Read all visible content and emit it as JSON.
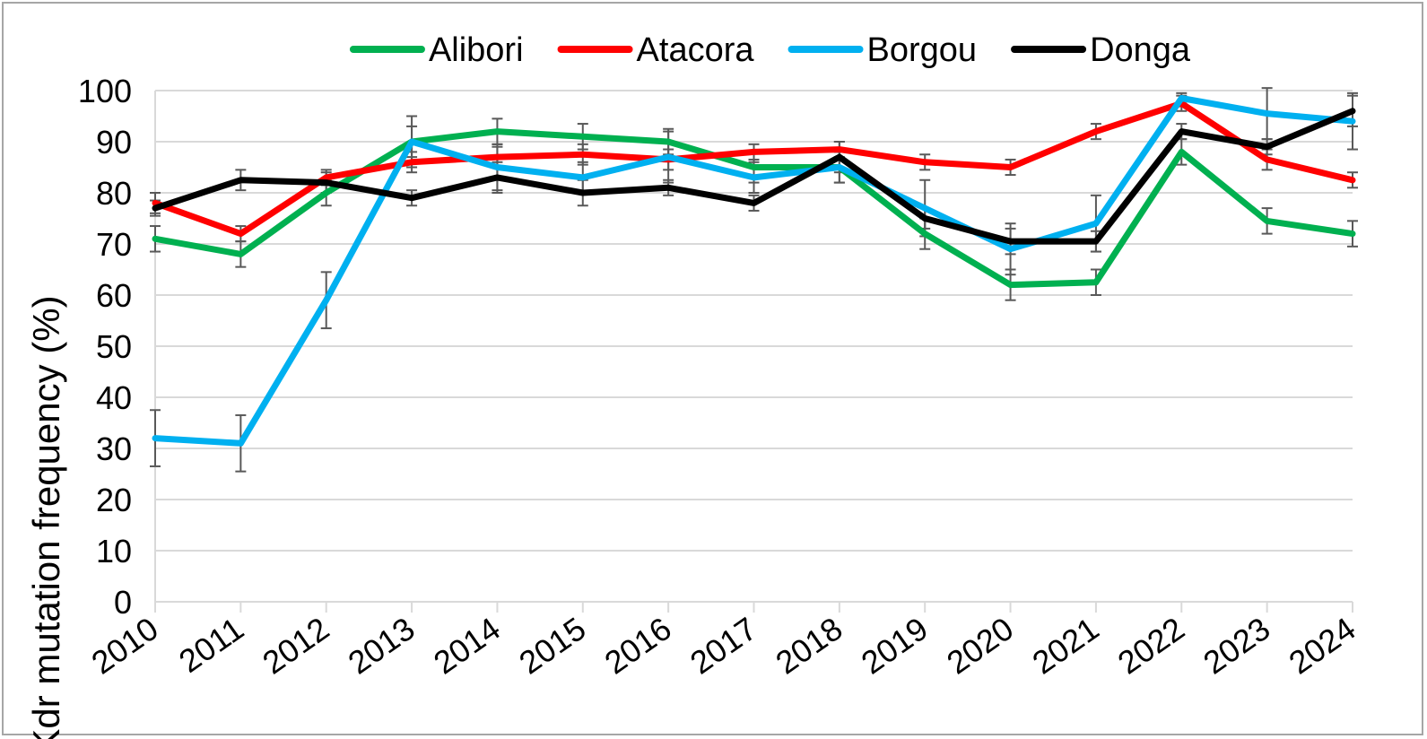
{
  "chart_data": {
    "type": "line",
    "title": "",
    "xlabel": "",
    "ylabel": "Kdr mutation frequency (%)",
    "ylim": [
      0,
      100
    ],
    "yticks": [
      "0",
      "10",
      "20",
      "30",
      "40",
      "50",
      "60",
      "70",
      "80",
      "90",
      "100"
    ],
    "grid": true,
    "legend_position": "top",
    "x": [
      "2010",
      "2011",
      "2012",
      "2013",
      "2014",
      "2015",
      "2016",
      "2017",
      "2018",
      "2019",
      "2020",
      "2021",
      "2022",
      "2023",
      "2024"
    ],
    "series": [
      {
        "name": "Alibori",
        "color": "#00b050",
        "values": [
          71,
          68,
          80,
          90,
          92,
          91,
          90,
          85,
          85,
          72,
          62,
          62.5,
          88,
          74.5,
          72
        ],
        "errors": [
          2.5,
          2.5,
          2.5,
          3,
          2.5,
          2.5,
          2.5,
          3,
          3,
          3,
          3,
          2.5,
          2.5,
          2.5,
          2.5
        ]
      },
      {
        "name": "Atacora",
        "color": "#ff0000",
        "values": [
          78,
          72,
          83,
          86,
          87,
          87.5,
          86.5,
          88,
          88.5,
          86,
          85,
          92,
          97.5,
          86.5,
          82.5
        ],
        "errors": [
          2,
          1.5,
          1.5,
          2,
          2,
          2,
          2,
          1.5,
          1.5,
          1.5,
          1.5,
          1.5,
          1.5,
          2,
          1.5
        ]
      },
      {
        "name": "Borgou",
        "color": "#00b0f0",
        "values": [
          32,
          31,
          59,
          90,
          85,
          83,
          87,
          83,
          85,
          77,
          69,
          74,
          98.5,
          95.5,
          94
        ],
        "errors": [
          5.5,
          5.5,
          5.5,
          5,
          4.5,
          3,
          5,
          3,
          3,
          5.5,
          5,
          5.5,
          1,
          5,
          5.5
        ]
      },
      {
        "name": "Donga",
        "color": "#000000",
        "values": [
          77,
          82.5,
          82,
          79,
          83,
          80,
          81,
          78,
          87,
          75,
          70.5,
          70.5,
          92,
          89,
          96
        ],
        "errors": [
          1.5,
          2,
          2,
          1.5,
          3,
          2.5,
          1.5,
          1.5,
          3,
          2,
          2.5,
          2,
          1.5,
          1.5,
          3
        ]
      }
    ]
  }
}
